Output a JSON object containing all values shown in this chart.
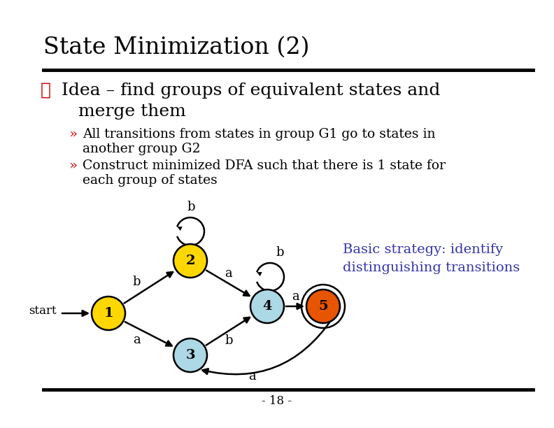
{
  "title": "State Minimization (2)",
  "bullet_diamond": "❖",
  "bullet_main_line1": "Idea – find groups of equivalent states and",
  "bullet_main_line2": "   merge them",
  "sub1_marker": "»",
  "sub1_text_line1": "All transitions from states in group G1 go to states in",
  "sub1_text_line2": "another group G2",
  "sub2_marker": "»",
  "sub2_text_line1": "Construct minimized DFA such that there is 1 state for",
  "sub2_text_line2": "each group of states",
  "annotation_line1": "Basic strategy: identify",
  "annotation_line2": "distinguishing transitions",
  "page_num": "- 18 -",
  "node_colors": {
    "1": "#FFD700",
    "2": "#FFD700",
    "3": "#ADD8E6",
    "4": "#ADD8E6",
    "5": "#E85500"
  },
  "background_color": "#ffffff",
  "title_color": "#000000",
  "diamond_color": "#cc0000",
  "sub_marker_color": "#cc0000",
  "annotation_color": "#3333aa",
  "line_color": "#000000"
}
